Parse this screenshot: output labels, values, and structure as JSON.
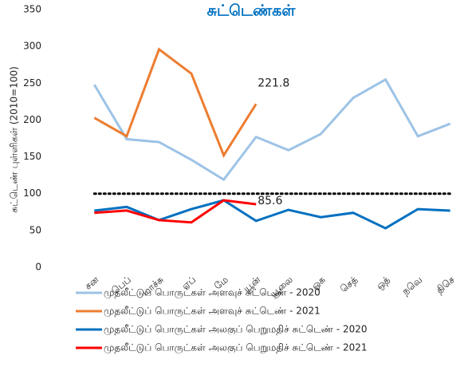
{
  "chart_data": {
    "type": "line",
    "title": "சுட்டெண்கள்",
    "y_label": "சுட்டெண் புள்ளிகள் (2010=100)",
    "categories": [
      "சன",
      "பெப்",
      "மாச்சு",
      "ஏப்",
      "மே",
      "யூன்",
      "யூலை",
      "ஓக",
      "செத்",
      "ஒத்",
      "நவெ",
      "திசெ"
    ],
    "series": [
      {
        "name": "முதலீட்டுப் பொருட்கள் அளவுச் சுட்டெண் - 2020",
        "color": "#9dc3e6",
        "values": [
          248,
          174,
          170,
          146,
          119,
          177,
          159,
          181,
          230,
          255,
          178,
          195
        ]
      },
      {
        "name": "முதலீட்டுப் பொருட்கள் அளவுச் சுட்டெண் - 2021",
        "color": "#ed7d31",
        "values": [
          203,
          178,
          296,
          263,
          152,
          221.8,
          null,
          null,
          null,
          null,
          null,
          null
        ]
      },
      {
        "name": "முதலீட்டுப் பொருட்கள் அலகுப் பெறுமதிச் சுட்டெண் - 2020",
        "color": "#0070c0",
        "values": [
          77,
          82,
          64,
          79,
          91,
          63,
          78,
          68,
          74,
          53,
          79,
          77
        ]
      },
      {
        "name": "முதலீட்டுப் பொருட்கள் அலகுப் பெறுமதிச் சுட்டெண் - 2021",
        "color": "#ff0000",
        "values": [
          74,
          77,
          64,
          61,
          91,
          85.6,
          null,
          null,
          null,
          null,
          null,
          null
        ]
      }
    ],
    "reference_line": 100,
    "ylim": [
      0,
      350
    ],
    "yticks": [
      0,
      50,
      100,
      150,
      200,
      250,
      300,
      350
    ]
  }
}
